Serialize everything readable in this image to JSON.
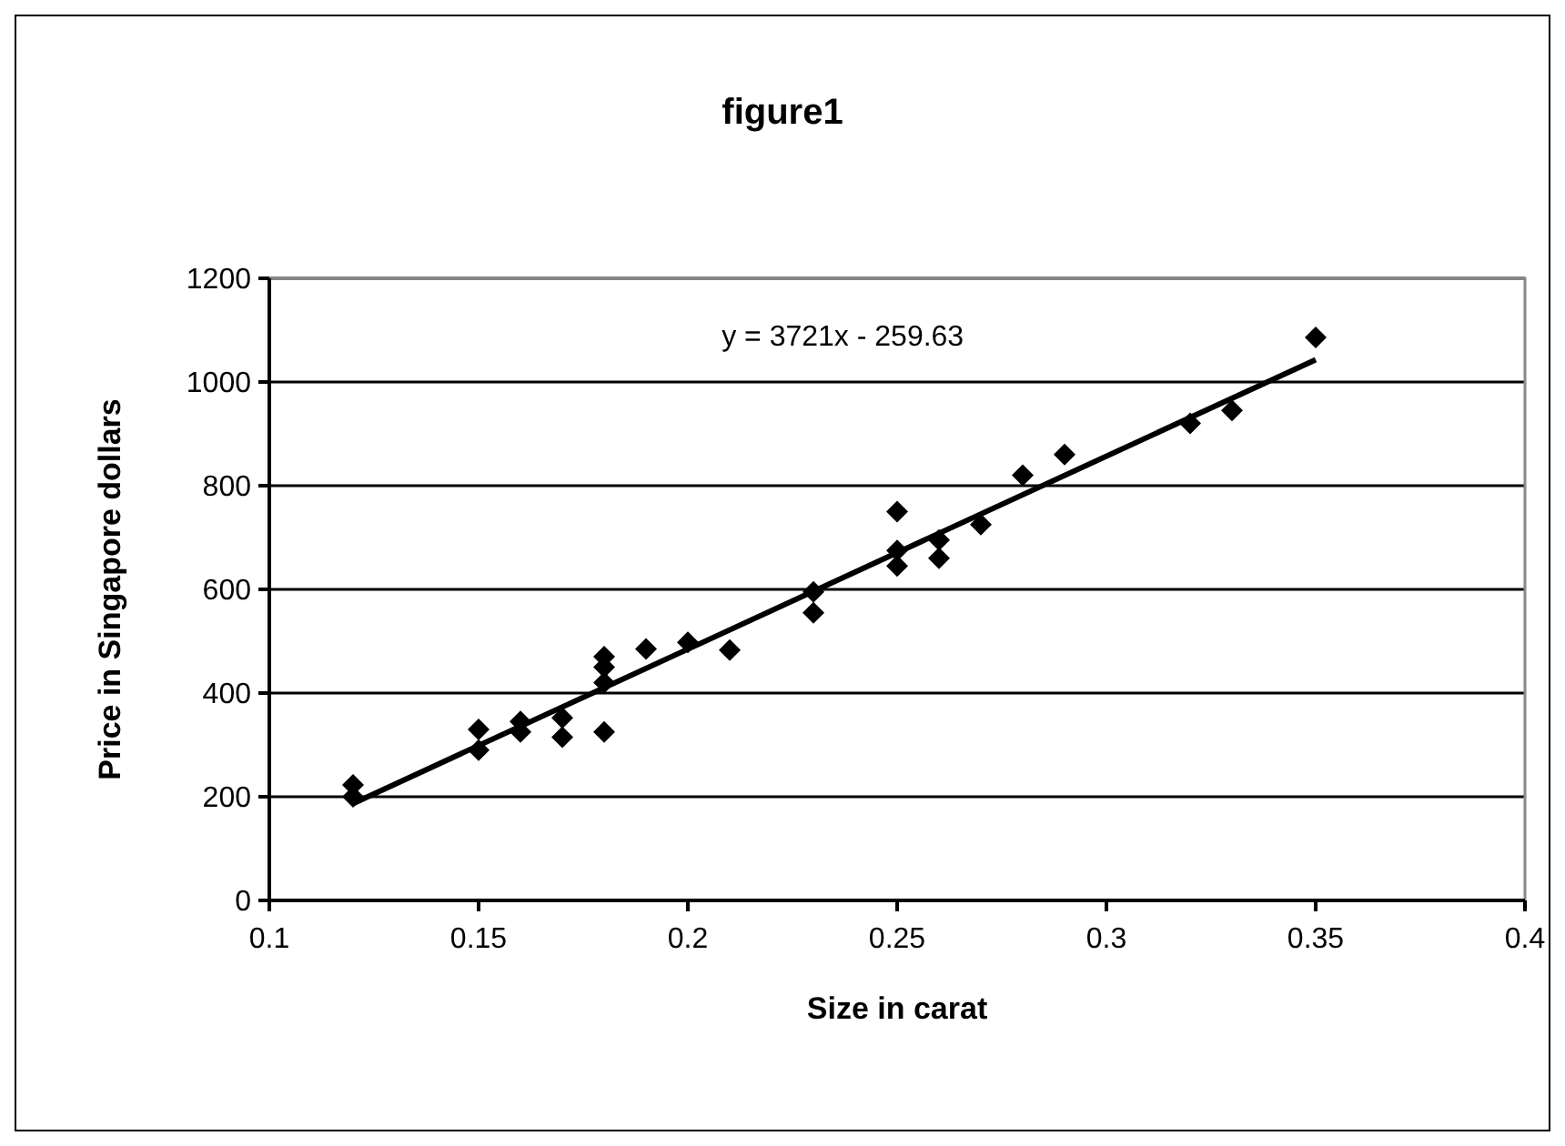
{
  "chart_data": {
    "type": "scatter",
    "title": "figure1",
    "xlabel": "Size in carat",
    "ylabel": "Price in Singapore dollars",
    "xlim": [
      0.1,
      0.4
    ],
    "xticks": [
      0.1,
      0.15,
      0.2,
      0.25,
      0.3,
      0.35,
      0.4
    ],
    "ylim": [
      0,
      1200
    ],
    "yticks": [
      0,
      200,
      400,
      600,
      800,
      1000,
      1200
    ],
    "grid": "y",
    "annotations": [
      "y = 3721x - 259.63"
    ],
    "series": [
      {
        "color": "#000000",
        "marker": "diamond",
        "x": [
          0.12,
          0.12,
          0.15,
          0.15,
          0.16,
          0.16,
          0.17,
          0.17,
          0.18,
          0.18,
          0.18,
          0.18,
          0.19,
          0.2,
          0.21,
          0.23,
          0.23,
          0.25,
          0.25,
          0.25,
          0.26,
          0.26,
          0.27,
          0.28,
          0.29,
          0.32,
          0.33,
          0.35
        ],
        "values": [
          223,
          200,
          290,
          330,
          325,
          345,
          315,
          352,
          325,
          420,
          450,
          470,
          485,
          498,
          483,
          555,
          595,
          645,
          675,
          750,
          660,
          695,
          725,
          820,
          860,
          920,
          945,
          1086
        ]
      },
      {
        "type": "line",
        "color": "#000000",
        "marker": "none",
        "line_style": "solid",
        "x": [
          0.12,
          0.35
        ],
        "values": [
          187,
          1043
        ]
      }
    ]
  }
}
